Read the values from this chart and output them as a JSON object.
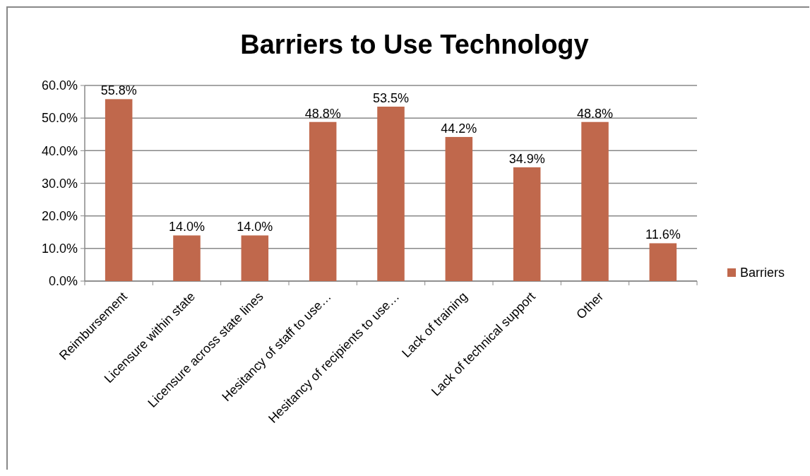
{
  "chart_data": {
    "type": "bar",
    "title": "Barriers to Use Technology",
    "categories": [
      "Reimbursement",
      "Licensure within state",
      "Licensure across state lines",
      "Hesitancy of staff to use…",
      "Hesitancy of recipients to use…",
      "Lack of training",
      "Lack of technical support",
      "Other",
      null
    ],
    "series": [
      {
        "name": "Barriers",
        "color": "#c0684c",
        "values": [
          55.8,
          14.0,
          14.0,
          48.8,
          53.5,
          44.2,
          34.9,
          48.8,
          11.6
        ],
        "value_labels": [
          "55.8%",
          "14.0%",
          "14.0%",
          "48.8%",
          "53.5%",
          "44.2%",
          "34.9%",
          "48.8%",
          "11.6%"
        ]
      }
    ],
    "ylim": [
      0,
      60
    ],
    "yticks": [
      {
        "value": 0,
        "label": "0.0%"
      },
      {
        "value": 10,
        "label": "10.0%"
      },
      {
        "value": 20,
        "label": "20.0%"
      },
      {
        "value": 30,
        "label": "30.0%"
      },
      {
        "value": 40,
        "label": "40.0%"
      },
      {
        "value": 50,
        "label": "50.0%"
      },
      {
        "value": 60,
        "label": "60.0%"
      }
    ],
    "grid": "y",
    "legend": "right"
  }
}
